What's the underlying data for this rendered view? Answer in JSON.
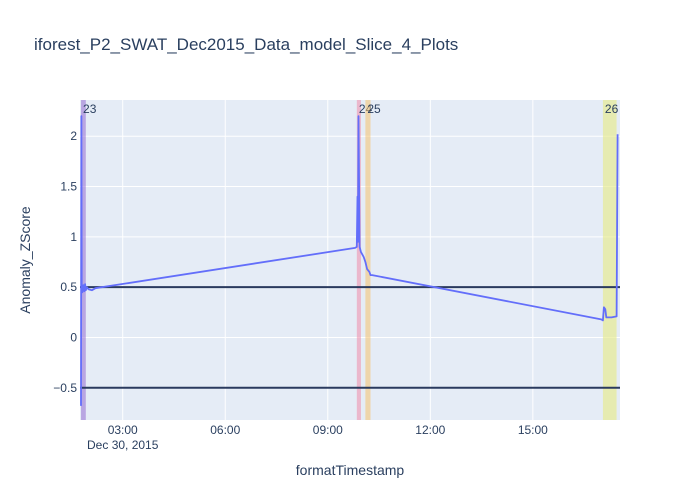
{
  "chart_data": {
    "type": "line",
    "title": "iforest_P2_SWAT_Dec2015_Data_model_Slice_4_Plots",
    "xlabel": "formatTimestamp",
    "ylabel": "Anomaly_ZScore",
    "x_range_hours": [
      1.75,
      17.55
    ],
    "ylim": [
      -0.82,
      2.36
    ],
    "x_ticks": [
      {
        "label": "03:00",
        "hour": 3
      },
      {
        "label": "06:00",
        "hour": 6
      },
      {
        "label": "09:00",
        "hour": 9
      },
      {
        "label": "12:00",
        "hour": 12
      },
      {
        "label": "15:00",
        "hour": 15
      }
    ],
    "x_date_label": "Dec 30, 2015",
    "y_ticks": [
      {
        "label": "−0.5",
        "value": -0.5
      },
      {
        "label": "0",
        "value": 0
      },
      {
        "label": "0.5",
        "value": 0.5
      },
      {
        "label": "1",
        "value": 1
      },
      {
        "label": "1.5",
        "value": 1.5
      },
      {
        "label": "2",
        "value": 2
      }
    ],
    "thresholds": [
      0.5,
      -0.5
    ],
    "threshold_color": "#2a3a5e",
    "bands": [
      {
        "label": "23",
        "start": 1.78,
        "end": 1.92,
        "color": "rgba(150,110,210,0.55)"
      },
      {
        "label": "24",
        "start": 9.85,
        "end": 9.97,
        "color": "rgba(240,140,170,0.55)"
      },
      {
        "label": "25",
        "start": 10.1,
        "end": 10.25,
        "color": "rgba(245,195,110,0.55)"
      },
      {
        "label": "26",
        "start": 17.05,
        "end": 17.45,
        "color": "rgba(230,235,140,0.65)"
      }
    ],
    "series": [
      {
        "color": "#636efa",
        "points": [
          [
            1.78,
            -0.68
          ],
          [
            1.79,
            2.2
          ],
          [
            1.8,
            0.5
          ],
          [
            1.82,
            0.45
          ],
          [
            1.85,
            0.52
          ],
          [
            1.88,
            0.46
          ],
          [
            1.9,
            0.53
          ],
          [
            1.92,
            0.47
          ],
          [
            1.95,
            0.5
          ],
          [
            2.0,
            0.48
          ],
          [
            2.1,
            0.47
          ],
          [
            2.2,
            0.49
          ],
          [
            9.8,
            0.89
          ],
          [
            9.85,
            0.9
          ],
          [
            9.87,
            1.4
          ],
          [
            9.88,
            0.95
          ],
          [
            9.9,
            2.2
          ],
          [
            9.93,
            0.9
          ],
          [
            9.97,
            0.85
          ],
          [
            10.05,
            0.8
          ],
          [
            10.1,
            0.75
          ],
          [
            10.15,
            0.68
          ],
          [
            10.22,
            0.65
          ],
          [
            10.25,
            0.62
          ],
          [
            10.3,
            0.62
          ],
          [
            17.0,
            0.18
          ],
          [
            17.05,
            0.17
          ],
          [
            17.08,
            0.3
          ],
          [
            17.12,
            0.28
          ],
          [
            17.15,
            0.2
          ],
          [
            17.3,
            0.2
          ],
          [
            17.45,
            0.21
          ],
          [
            17.48,
            2.02
          ]
        ]
      }
    ],
    "grid": true
  }
}
